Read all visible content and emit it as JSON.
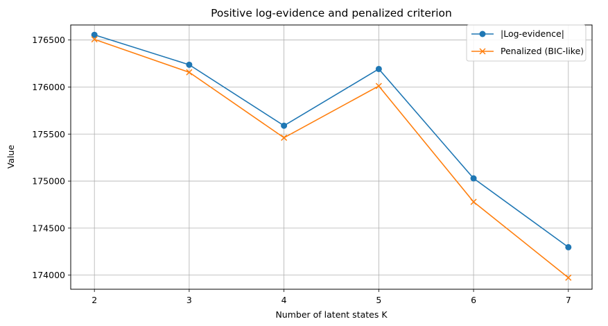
{
  "chart_data": {
    "type": "line",
    "title": "Positive log-evidence and penalized criterion",
    "xlabel": "Number of latent states K",
    "ylabel": "Value",
    "x": [
      2,
      3,
      4,
      5,
      6,
      7
    ],
    "xticks": [
      "2",
      "3",
      "4",
      "5",
      "6",
      "7"
    ],
    "xlim": [
      1.75,
      7.25
    ],
    "ylim": [
      173850,
      176660
    ],
    "yticks": [
      174000,
      174500,
      175000,
      175500,
      176000,
      176500
    ],
    "ytick_labels": [
      "174000",
      "174500",
      "175000",
      "175500",
      "176000",
      "176500"
    ],
    "grid": true,
    "legend_position": "top-right",
    "series": [
      {
        "name": "|Log-evidence|",
        "color": "#1f77b4",
        "marker": "circle",
        "values": [
          176555,
          176237,
          175589,
          176192,
          175029,
          174297
        ]
      },
      {
        "name": "Penalized (BIC-like)",
        "color": "#ff7f0e",
        "marker": "x",
        "values": [
          176507,
          176157,
          175461,
          176011,
          174779,
          173973
        ]
      }
    ]
  }
}
